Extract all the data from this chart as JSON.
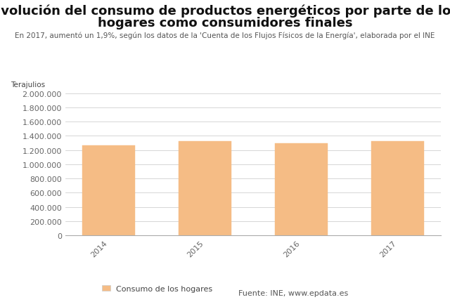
{
  "title_line1": "Evolución del consumo de productos energéticos por parte de los",
  "title_line2": "hogares como consumidores finales",
  "subtitle": "En 2017, aumentó un 1,9%, según los datos de la 'Cuenta de los Flujos Físicos de la Energía', elaborada por el INE",
  "ylabel": "Terajulios",
  "categories": [
    "2014",
    "2015",
    "2016",
    "2017"
  ],
  "values": [
    1263000,
    1325000,
    1295000,
    1320000
  ],
  "bar_color": "#F5BC85",
  "bar_edge_color": "#F5BC85",
  "ylim": [
    0,
    2000000
  ],
  "yticks": [
    0,
    200000,
    400000,
    600000,
    800000,
    1000000,
    1200000,
    1400000,
    1600000,
    1800000,
    2000000
  ],
  "legend_label": "Consumo de los hogares",
  "source_label": "Fuente: INE, www.epdata.es",
  "background_color": "#ffffff",
  "grid_color": "#d0d0d0",
  "title_fontsize": 13,
  "subtitle_fontsize": 7.5,
  "ylabel_fontsize": 7.5,
  "tick_fontsize": 8,
  "legend_fontsize": 8
}
